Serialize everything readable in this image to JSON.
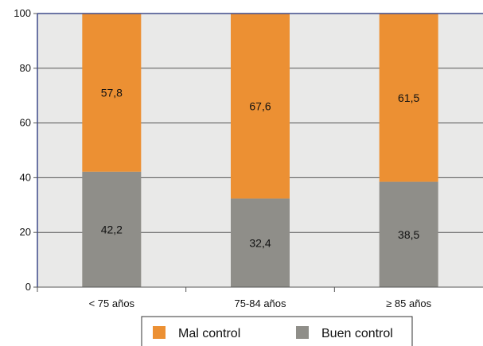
{
  "chart_data": {
    "type": "bar",
    "stacked": true,
    "categories": [
      "< 75 años",
      "75-84 años",
      "≥ 85 años"
    ],
    "series": [
      {
        "name": "Buen control",
        "values": [
          42.2,
          32.4,
          38.5
        ],
        "labels": [
          "42,2",
          "32,4",
          "38,5"
        ],
        "color": "#8f8e89"
      },
      {
        "name": "Mal control",
        "values": [
          57.8,
          67.6,
          61.5
        ],
        "labels": [
          "57,8",
          "67,6",
          "61,5"
        ],
        "color": "#ec9033"
      }
    ],
    "legend_order": [
      "Mal control",
      "Buen control"
    ],
    "ylim": [
      0,
      100
    ],
    "yticks": [
      0,
      20,
      40,
      60,
      80,
      100
    ],
    "title": "",
    "xlabel": "",
    "ylabel": "",
    "grid": true,
    "legend_position": "bottom",
    "plot_background": "#e9e9e8",
    "axis_color": "#3f4a8a"
  }
}
